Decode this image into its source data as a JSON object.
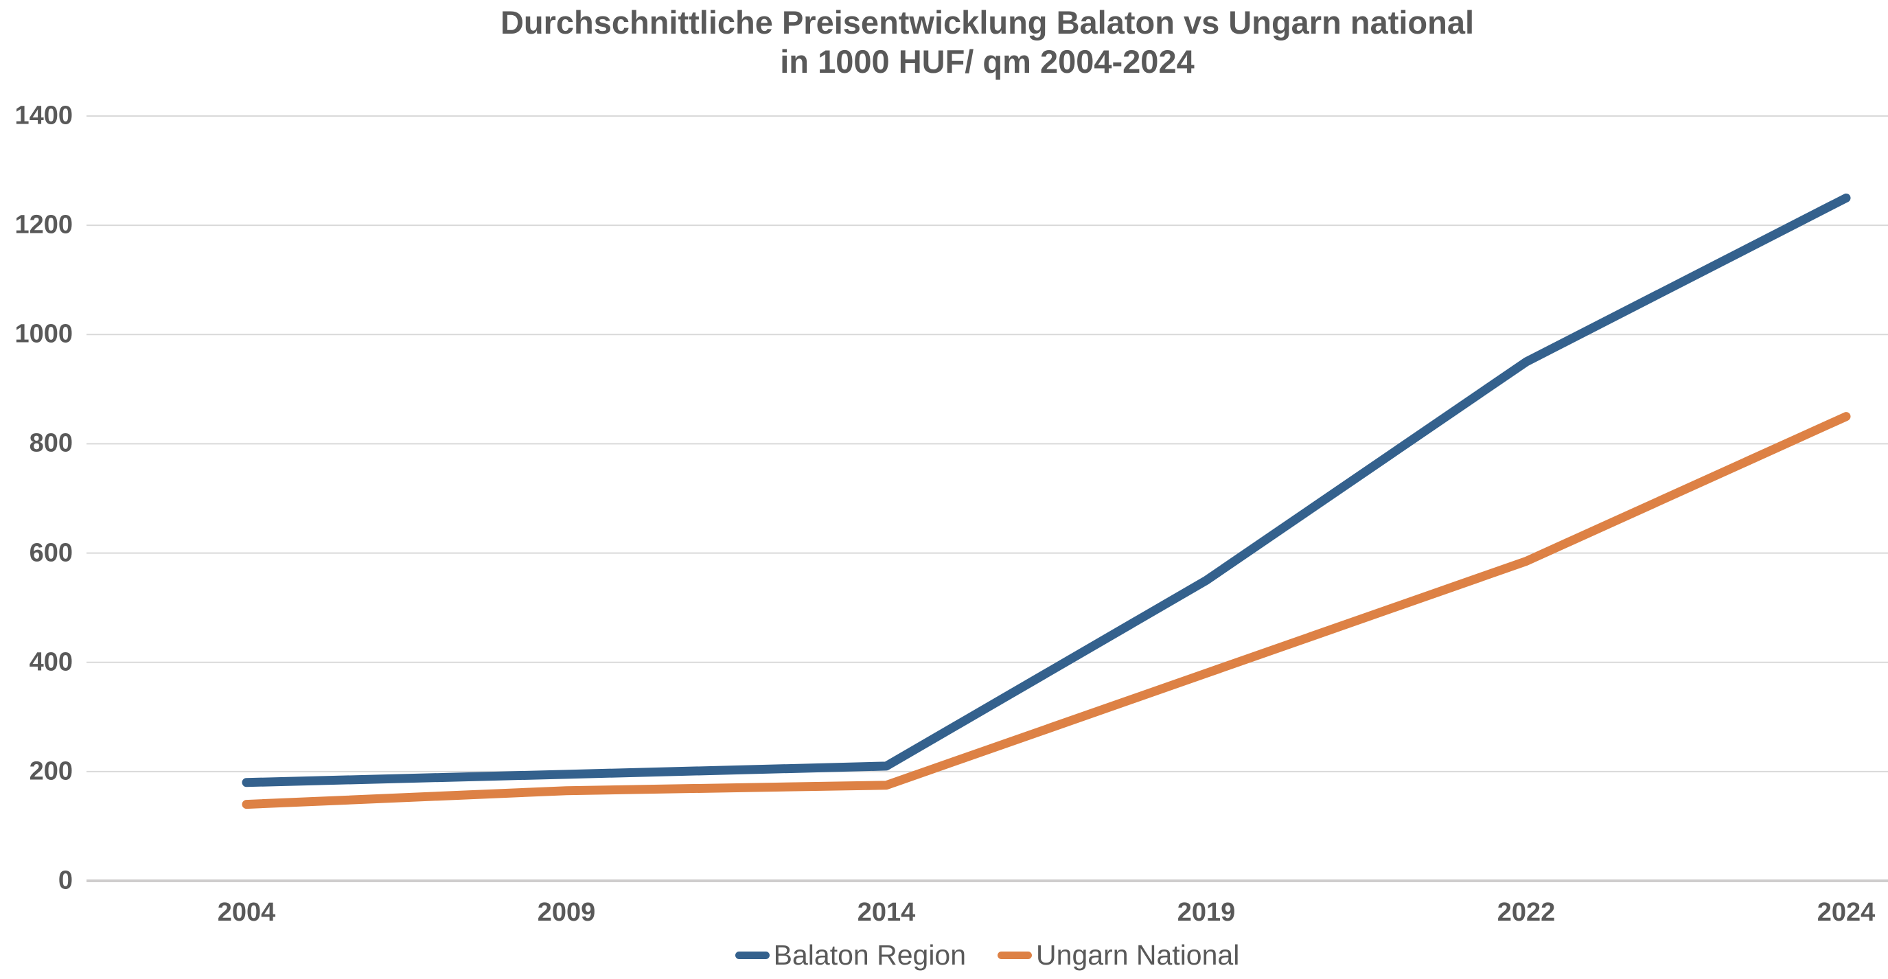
{
  "title": {
    "line1": "Durchschnittliche Preisentwicklung Balaton vs Ungarn national",
    "line2": "in 1000 HUF/ qm  2004-2024"
  },
  "chart_data": {
    "type": "line",
    "categories": [
      "2004",
      "2009",
      "2014",
      "2019",
      "2022",
      "2024"
    ],
    "series": [
      {
        "name": "Balaton Region",
        "color": "#34618D",
        "values": [
          180,
          195,
          210,
          550,
          950,
          1250
        ]
      },
      {
        "name": "Ungarn National",
        "color": "#DD8145",
        "values": [
          140,
          165,
          175,
          380,
          585,
          850
        ]
      }
    ],
    "title": "Durchschnittliche Preisentwicklung Balaton vs Ungarn national in 1000 HUF/ qm  2004-2024",
    "xlabel": "",
    "ylabel": "",
    "ylim": [
      0,
      1400
    ],
    "yticks": [
      0,
      200,
      400,
      600,
      800,
      1000,
      1200,
      1400
    ],
    "grid": "horizontal",
    "legend_position": "bottom",
    "colors": {
      "text": "#595959",
      "gridline": "#D9D9D9",
      "axis_line": "#CFCDCD",
      "background": "#FFFFFF"
    }
  }
}
